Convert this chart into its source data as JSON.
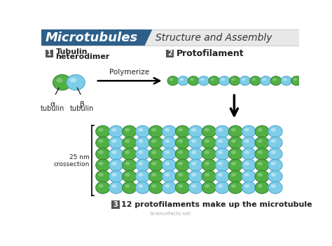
{
  "title_main": "Microtubules",
  "title_sub": "Structure and Assembly",
  "title_bg_color": "#2d5f8a",
  "title_sub_bg": "#e8e8e8",
  "green_color": "#52b043",
  "green_dark": "#2e7d32",
  "green_highlight": "#a5d6a7",
  "blue_color": "#7ecde8",
  "blue_dark": "#4ba3c7",
  "blue_highlight": "#e0f4fb",
  "label_badge_color": "#555555",
  "label1_title_line1": "Tubulin",
  "label1_title_line2": "heterodimer",
  "alpha_label": "α\ntubulin",
  "beta_label": "β\ntubulin",
  "polymerize_text": "Polymerize",
  "label2_title": "Protofilament",
  "crossection_text": "25 nm\ncrossection",
  "label3_title": "12 protofilaments make up the microtubule",
  "bg_color": "#ffffff",
  "text_color": "#222222",
  "watermark": "ScienceFacts.net"
}
